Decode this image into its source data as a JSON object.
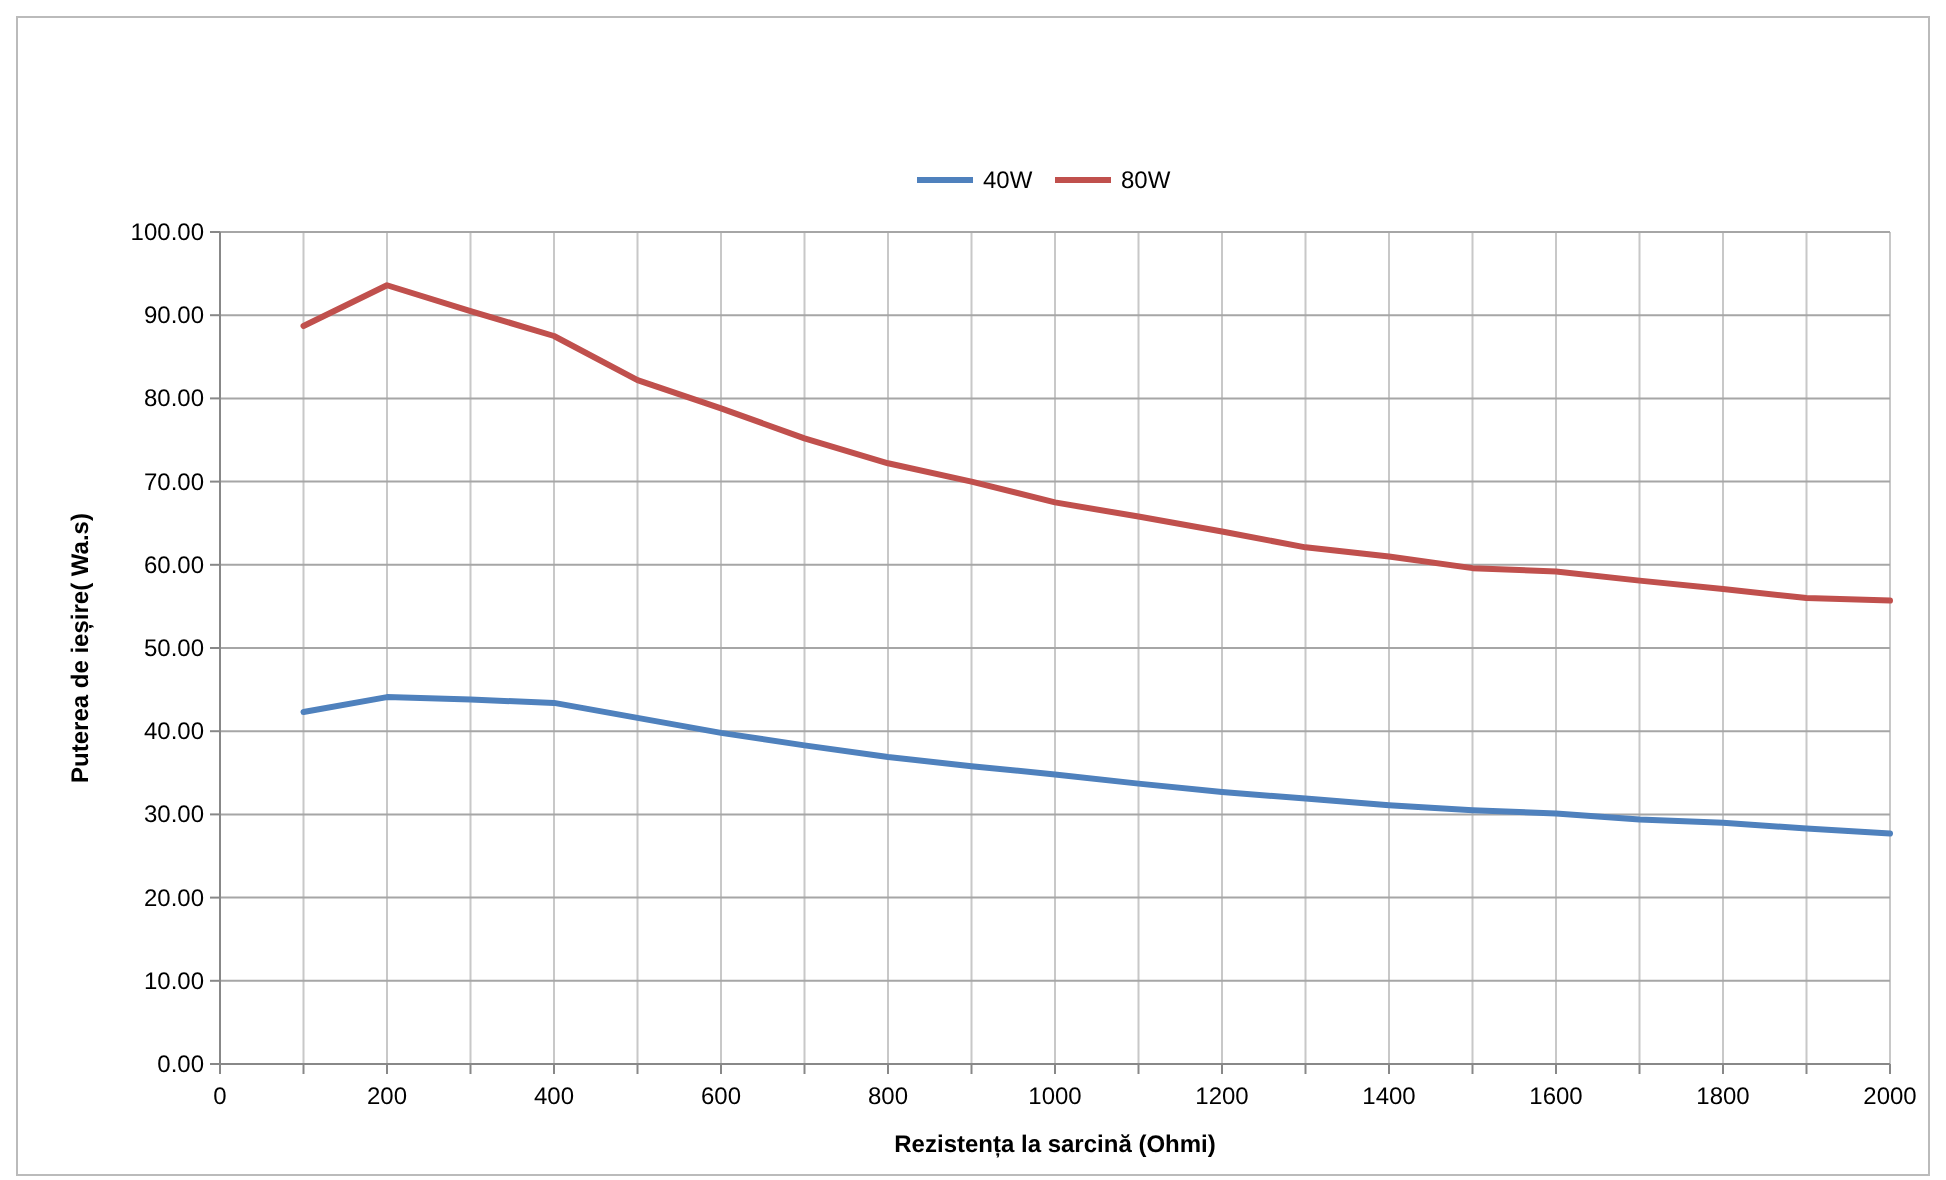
{
  "chart_data": {
    "type": "line",
    "xlabel": "Rezistența la sarcină (Ohmi)",
    "ylabel": "Puterea de ieșire( Wa.s)",
    "x": [
      100,
      200,
      300,
      400,
      500,
      600,
      700,
      800,
      900,
      1000,
      1100,
      1200,
      1300,
      1400,
      1500,
      1600,
      1700,
      1800,
      1900,
      2000
    ],
    "series": [
      {
        "name": "40W",
        "color": "#4f81bd",
        "values": [
          42.3,
          44.1,
          43.8,
          43.4,
          41.6,
          39.8,
          38.3,
          36.9,
          35.8,
          34.8,
          33.7,
          32.7,
          31.9,
          31.1,
          30.5,
          30.1,
          29.4,
          29.0,
          28.3,
          27.7
        ]
      },
      {
        "name": "80W",
        "color": "#c0504d",
        "values": [
          88.7,
          93.6,
          90.5,
          87.5,
          82.2,
          78.8,
          75.2,
          72.2,
          70.0,
          67.5,
          65.8,
          64.0,
          62.1,
          61.0,
          59.6,
          59.2,
          58.1,
          57.1,
          56.0,
          55.7
        ]
      }
    ],
    "xlim": [
      0,
      2000
    ],
    "xticks": [
      0,
      {
        "value": 100,
        "label": null
      },
      200,
      {
        "value": 300,
        "label": null
      },
      400,
      {
        "value": 500,
        "label": null
      },
      600,
      {
        "value": 700,
        "label": null
      },
      800,
      {
        "value": 900,
        "label": null
      },
      1000,
      {
        "value": 1100,
        "label": null
      },
      1200,
      {
        "value": 1300,
        "label": null
      },
      1400,
      {
        "value": 1500,
        "label": null
      },
      1600,
      {
        "value": 1700,
        "label": null
      },
      1800,
      {
        "value": 1900,
        "label": null
      },
      2000
    ],
    "ylim": [
      0,
      100
    ],
    "yticks": [
      {
        "value": 0,
        "label": "0.00"
      },
      {
        "value": 10,
        "label": "10.00"
      },
      {
        "value": 20,
        "label": "20.00"
      },
      {
        "value": 30,
        "label": "30.00"
      },
      {
        "value": 40,
        "label": "40.00"
      },
      {
        "value": 50,
        "label": "50.00"
      },
      {
        "value": 60,
        "label": "60.00"
      },
      {
        "value": 70,
        "label": "70.00"
      },
      {
        "value": 80,
        "label": "80.00"
      },
      {
        "value": 90,
        "label": "90.00"
      },
      {
        "value": 100,
        "label": "100.00"
      }
    ],
    "grid": true,
    "legend": "top",
    "marker": "none",
    "line_style": "solid"
  }
}
